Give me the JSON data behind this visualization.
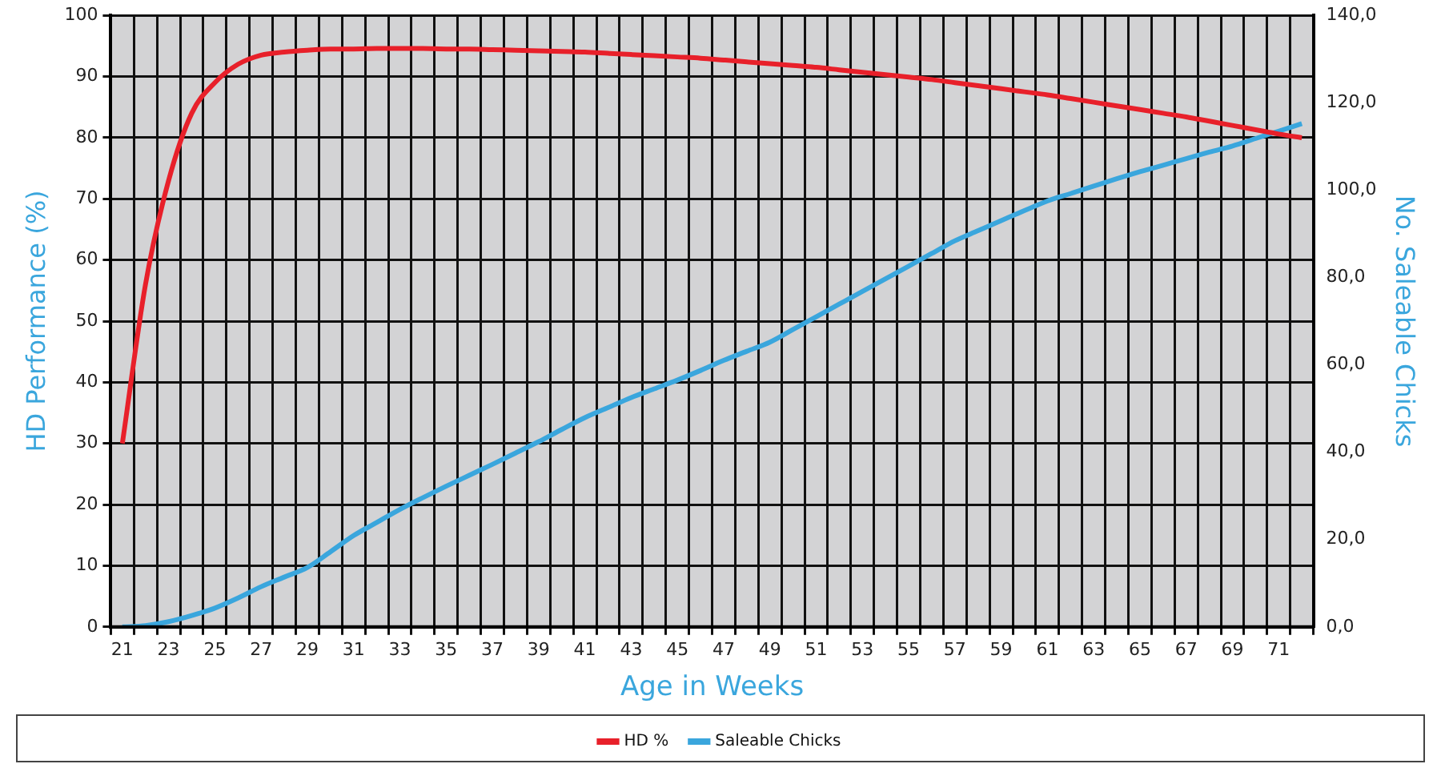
{
  "chart_data": {
    "type": "line",
    "xlabel": "Age in Weeks",
    "ylabel": "HD Performance (%)",
    "y2label": "No. Saleable Chicks",
    "categories": [
      "21",
      null,
      "23",
      null,
      "25",
      null,
      "27",
      null,
      "29",
      null,
      "31",
      null,
      "33",
      null,
      "35",
      null,
      "37",
      null,
      "39",
      null,
      "41",
      null,
      "43",
      null,
      "45",
      null,
      "47",
      null,
      "49",
      null,
      "51",
      null,
      "53",
      null,
      "55",
      null,
      "57",
      null,
      "59",
      null,
      "61",
      null,
      "63",
      null,
      "65",
      null,
      "67",
      null,
      "69",
      null,
      "71",
      null
    ],
    "series": [
      {
        "name": "HD %",
        "color": "#e8202a",
        "values": [
          30,
          56,
          73,
          84,
          89,
          92,
          93.5,
          94,
          94.3,
          94.5,
          94.5,
          94.6,
          94.6,
          94.6,
          94.5,
          94.5,
          94.4,
          94.3,
          94.2,
          94.1,
          94,
          93.8,
          93.6,
          93.4,
          93.2,
          93,
          92.7,
          92.4,
          92.1,
          91.8,
          91.5,
          91.1,
          90.7,
          90.3,
          89.9,
          89.5,
          89,
          88.5,
          88,
          87.5,
          87,
          86.4,
          85.8,
          85.2,
          84.6,
          84,
          83.4,
          82.7,
          82,
          81.3,
          80.6,
          80
        ]
      },
      {
        "name": "Saleable Chicks",
        "color": "#3aa6dd",
        "axis": "y2",
        "values": [
          0,
          0.3,
          1.2,
          2.6,
          4.3,
          6.6,
          9.2,
          11.4,
          13.6,
          17.2,
          20.9,
          23.9,
          26.9,
          29.6,
          32.2,
          34.7,
          37.2,
          39.8,
          42.4,
          45.2,
          47.9,
          50.2,
          52.5,
          54.5,
          56.5,
          58.7,
          61,
          63.1,
          65.2,
          68.1,
          71,
          73.9,
          76.8,
          79.7,
          82.6,
          85.5,
          88.4,
          90.7,
          93,
          95.3,
          97.5,
          99.2,
          100.9,
          102.6,
          104.2,
          105.7,
          107.2,
          108.7,
          110.1,
          111.8,
          113.5,
          115.2
        ]
      }
    ],
    "ylim": [
      0,
      100
    ],
    "yticks": [
      0,
      10,
      20,
      30,
      40,
      50,
      60,
      70,
      80,
      90,
      100
    ],
    "y2lim": [
      0,
      140
    ],
    "y2ticks": [
      {
        "value": 0,
        "label": "0,0"
      },
      {
        "value": 20,
        "label": "20,0"
      },
      {
        "value": 40,
        "label": "40,0"
      },
      {
        "value": 60,
        "label": "60,0"
      },
      {
        "value": 80,
        "label": "80,0"
      },
      {
        "value": 100,
        "label": "100,0"
      },
      {
        "value": 120,
        "label": "120,0"
      },
      {
        "value": 140,
        "label": "140,0"
      }
    ],
    "grid": true,
    "legend": "bottom",
    "marker": "none",
    "line_style": "solid"
  }
}
